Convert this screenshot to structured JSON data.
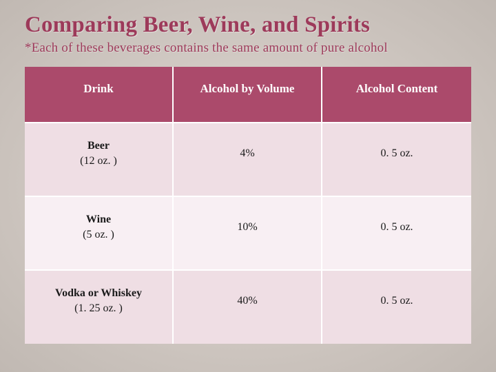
{
  "title": "Comparing Beer, Wine, and Spirits",
  "subtitle": "*Each of these beverages contains the same amount of pure alcohol",
  "colors": {
    "page_bg": "#dbd2cb",
    "accent": "#9d3a5a",
    "header_bg": "#ab4a6b",
    "header_text": "#ffffff",
    "row_odd_bg": "#efdee4",
    "row_even_bg": "#f8eff3",
    "cell_text": "#1a1a1a",
    "cell_border": "#ffffff"
  },
  "typography": {
    "font_family": "Georgia, 'Times New Roman', serif",
    "title_fontsize_pt": 25,
    "subtitle_fontsize_pt": 14,
    "header_fontsize_pt": 13,
    "cell_fontsize_pt": 12
  },
  "table": {
    "columns": [
      "Drink",
      "Alcohol by Volume",
      "Alcohol Content"
    ],
    "rows": [
      {
        "drink_name": "Beer",
        "drink_serving": "(12 oz. )",
        "abv": "4%",
        "content": "0. 5 oz."
      },
      {
        "drink_name": "Wine",
        "drink_serving": "(5 oz. )",
        "abv": "10%",
        "content": "0. 5 oz."
      },
      {
        "drink_name": "Vodka or Whiskey",
        "drink_serving": "(1. 25 oz. )",
        "abv": "40%",
        "content": "0. 5 oz."
      }
    ]
  }
}
